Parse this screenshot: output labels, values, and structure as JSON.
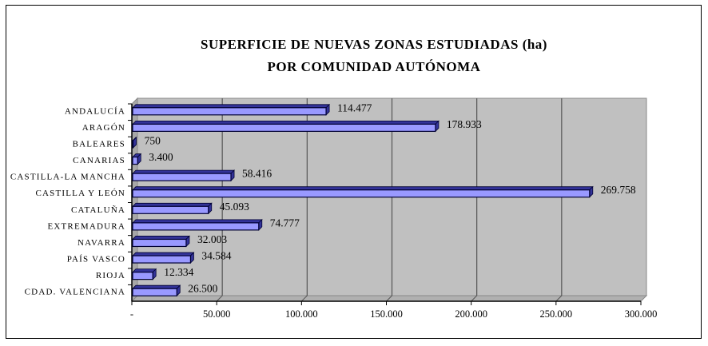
{
  "chart_data": {
    "type": "bar",
    "orientation": "horizontal",
    "style": "3d",
    "title": [
      "SUPERFICIE DE NUEVAS ZONAS ESTUDIADAS (ha)",
      "POR COMUNIDAD AUTÓNOMA"
    ],
    "categories": [
      "ANDALUCÍA",
      "ARAGÓN",
      "BALEARES",
      "CANARIAS",
      "CASTILLA-LA MANCHA",
      "CASTILLA Y LEÓN",
      "CATALUÑA",
      "EXTREMADURA",
      "NAVARRA",
      "PAÍS VASCO",
      "RIOJA",
      "CDAD. VALENCIANA"
    ],
    "values": [
      114477,
      178933,
      750,
      3400,
      58416,
      269758,
      45093,
      74777,
      32003,
      34584,
      12334,
      26500
    ],
    "data_labels": [
      "114.477",
      "178.933",
      "750",
      "3.400",
      "58.416",
      "269.758",
      "45.093",
      "74.777",
      "32.003",
      "34.584",
      "12.334",
      "26.500"
    ],
    "xlim": [
      0,
      300000
    ],
    "xticks": [
      0,
      50000,
      100000,
      150000,
      200000,
      250000,
      300000
    ],
    "xtick_labels": [
      "-",
      "50.000",
      "100.000",
      "150.000",
      "200.000",
      "250.000",
      "300.000"
    ],
    "grid": true,
    "colors": {
      "bar": "#9999FF",
      "bar_edge": "#000033",
      "bar_side": "#333399",
      "wall": "#C0C0C0",
      "grid": "#555555"
    }
  }
}
